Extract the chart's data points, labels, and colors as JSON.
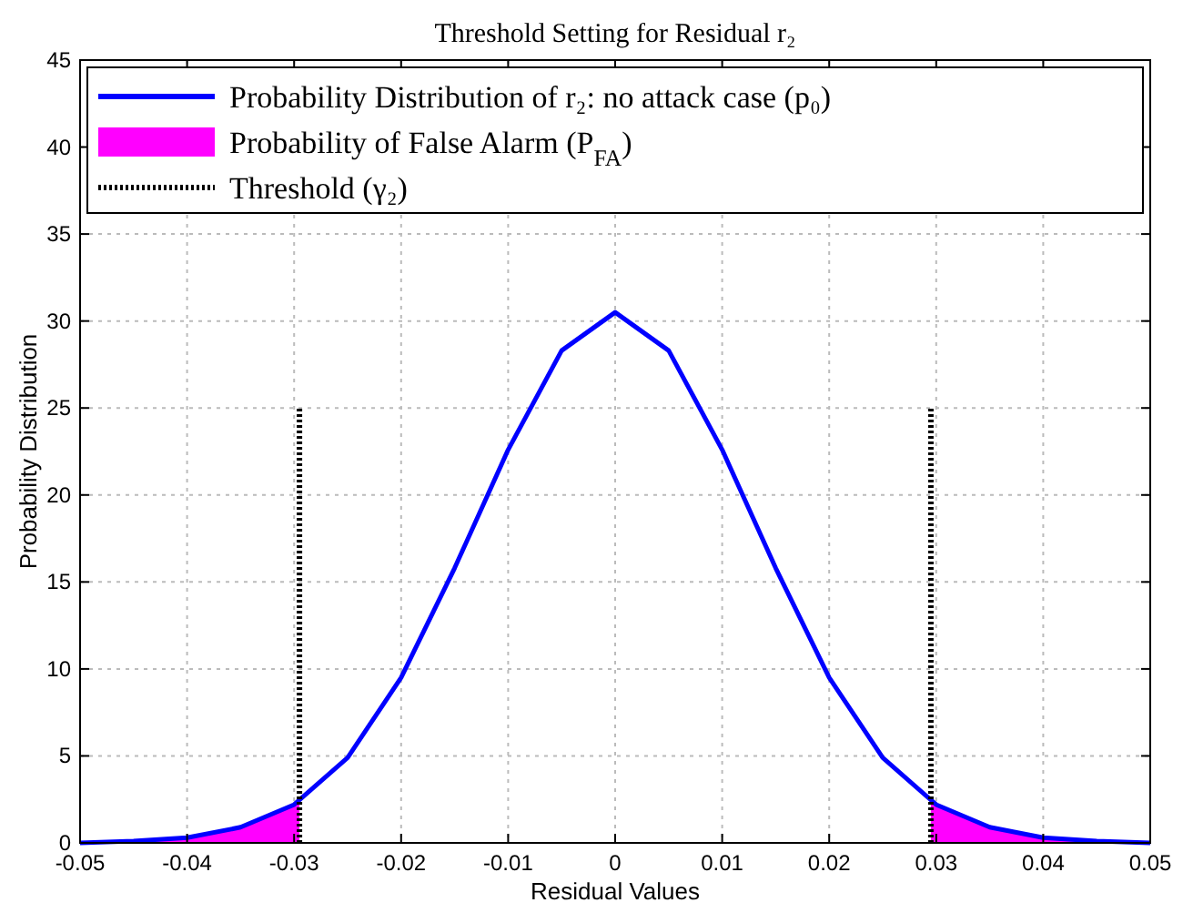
{
  "chart_data": {
    "type": "line",
    "title": "Threshold Setting for Residual r₂",
    "xlabel": "Residual Values",
    "ylabel": "Probability Distribution",
    "xlim": [
      -0.05,
      0.05
    ],
    "xticks": [
      -0.05,
      -0.04,
      -0.03,
      -0.02,
      -0.01,
      0,
      0.01,
      0.02,
      0.03,
      0.04,
      0.05
    ],
    "ylim": [
      0,
      45
    ],
    "yticks": [
      0,
      5,
      10,
      15,
      20,
      25,
      30,
      35,
      40,
      45
    ],
    "grid": true,
    "legend": "top",
    "series": [
      {
        "name": "Probability Distribution of r₂: no attack case (p₀)",
        "color": "#0000ff",
        "line_style": "solid",
        "x": [
          -0.05,
          -0.045,
          -0.04,
          -0.035,
          -0.03,
          -0.025,
          -0.02,
          -0.015,
          -0.01,
          -0.005,
          0,
          0.005,
          0.01,
          0.015,
          0.02,
          0.025,
          0.03,
          0.035,
          0.04,
          0.045,
          0.05
        ],
        "values": [
          0,
          0.1,
          0.3,
          0.9,
          2.2,
          4.9,
          9.5,
          15.8,
          22.6,
          28.3,
          30.5,
          28.3,
          22.6,
          15.8,
          9.5,
          4.9,
          2.2,
          0.9,
          0.3,
          0.1,
          0
        ]
      },
      {
        "name": "Probability of False Alarm (P$_{FA}$)",
        "type": "area",
        "color": "#ff00ff",
        "x": [
          -0.05,
          -0.045,
          -0.04,
          -0.035,
          -0.0295,
          0,
          0.0295,
          0.035,
          0.04,
          0.045,
          0.05
        ],
        "values": [
          0,
          0.1,
          0.3,
          0.9,
          2.3,
          null,
          2.3,
          0.9,
          0.3,
          0.1,
          0
        ]
      },
      {
        "name": "Threshold (γ₂)",
        "type": "line",
        "color": "#000000",
        "line_style": "dotted",
        "x": [
          -0.0295,
          -0.0295,
          0,
          0.0295,
          0.0295
        ],
        "values": [
          0,
          25,
          null,
          0,
          25
        ]
      }
    ]
  }
}
